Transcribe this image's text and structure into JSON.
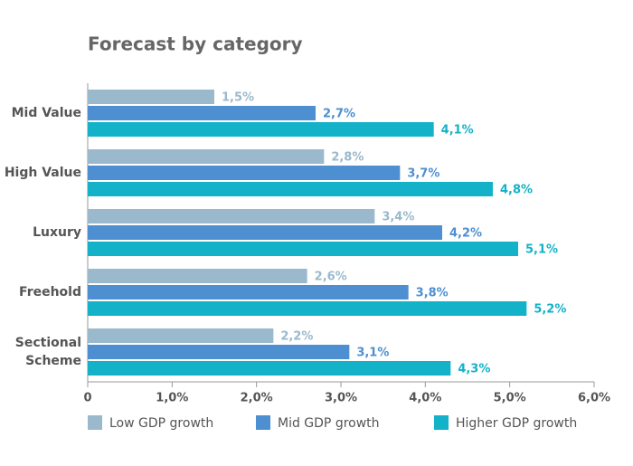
{
  "chart_data": {
    "type": "bar",
    "orientation": "horizontal",
    "title": "Forecast by category",
    "categories": [
      "Mid Value",
      "High Value",
      "Luxury",
      "Freehold",
      "Sectional Scheme"
    ],
    "series": [
      {
        "name": "Low GDP growth",
        "color": "#9ab9cc",
        "values": [
          1.5,
          2.8,
          3.4,
          2.6,
          2.2
        ],
        "value_labels": [
          "1,5%",
          "2,8%",
          "3,4%",
          "2,6%",
          "2,2%"
        ]
      },
      {
        "name": "Mid GDP growth",
        "color": "#4d8fd0",
        "values": [
          2.7,
          3.7,
          4.2,
          3.8,
          3.1
        ],
        "value_labels": [
          "2,7%",
          "3,7%",
          "4,2%",
          "3,8%",
          "3,1%"
        ]
      },
      {
        "name": "Higher GDP growth",
        "color": "#13b2c8",
        "values": [
          4.1,
          4.8,
          5.1,
          5.2,
          4.3
        ],
        "value_labels": [
          "4,1%",
          "4,8%",
          "5,1%",
          "5,2%",
          "4,3%"
        ]
      }
    ],
    "xlim": [
      0,
      6
    ],
    "xticks": [
      0,
      {
        "value": 1,
        "label": "1,0%"
      },
      {
        "value": 2,
        "label": "2,0%"
      },
      {
        "value": 3,
        "label": "3,0%"
      },
      {
        "value": 4,
        "label": "4,0%"
      },
      {
        "value": 5,
        "label": "5,0%"
      },
      {
        "value": 6,
        "label": "6,0%"
      }
    ],
    "legend": "bottom"
  }
}
